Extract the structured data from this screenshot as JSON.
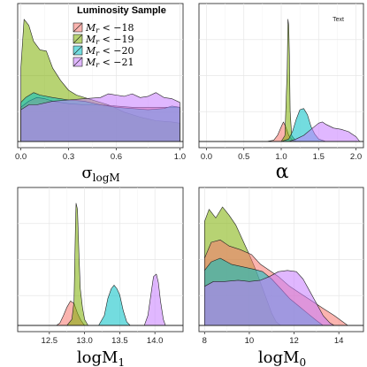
{
  "legend": {
    "title": "Luminosity Sample",
    "entries": [
      {
        "label_main": "M",
        "label_sub": "r",
        "label_rest": " < −18",
        "color": "#f8766d"
      },
      {
        "label_main": "M",
        "label_sub": "r",
        "label_rest": " < −19",
        "color": "#7cae00"
      },
      {
        "label_main": "M",
        "label_sub": "r",
        "label_rest": " < −20",
        "color": "#00bfc4"
      },
      {
        "label_main": "M",
        "label_sub": "r",
        "label_rest": " < −21",
        "color": "#c77cff"
      }
    ]
  },
  "fill_opacity": 0.55,
  "chart_data": [
    {
      "type": "area",
      "xlabel": "σ",
      "xlabel_sub": "logM",
      "xlim": [
        -0.02,
        1.02
      ],
      "ylim": [
        0,
        1.1
      ],
      "ticks": [
        0.0,
        0.3,
        0.6,
        1.0
      ],
      "tick_labels": [
        "0.0",
        "0.3",
        "0.6",
        "1.0"
      ],
      "series": [
        {
          "color": "#7cae00",
          "points": [
            [
              0,
              0.6
            ],
            [
              0.02,
              1
            ],
            [
              0.05,
              0.95
            ],
            [
              0.08,
              0.82
            ],
            [
              0.12,
              0.75
            ],
            [
              0.16,
              0.74
            ],
            [
              0.2,
              0.6
            ],
            [
              0.25,
              0.5
            ],
            [
              0.3,
              0.42
            ],
            [
              0.35,
              0.38
            ],
            [
              0.45,
              0.34
            ],
            [
              0.55,
              0.3
            ],
            [
              0.65,
              0.24
            ],
            [
              0.75,
              0.2
            ],
            [
              0.85,
              0.17
            ],
            [
              0.95,
              0.16
            ],
            [
              1,
              0.15
            ]
          ]
        },
        {
          "color": "#f8766d",
          "points": [
            [
              0,
              0.28
            ],
            [
              0.05,
              0.33
            ],
            [
              0.1,
              0.36
            ],
            [
              0.15,
              0.35
            ],
            [
              0.2,
              0.33
            ],
            [
              0.3,
              0.31
            ],
            [
              0.4,
              0.3
            ],
            [
              0.5,
              0.3
            ],
            [
              0.6,
              0.29
            ],
            [
              0.7,
              0.28
            ],
            [
              0.8,
              0.28
            ],
            [
              0.9,
              0.28
            ],
            [
              0.95,
              0.28
            ],
            [
              1,
              0.28
            ]
          ]
        },
        {
          "color": "#00bfc4",
          "points": [
            [
              0,
              0.32
            ],
            [
              0.03,
              0.36
            ],
            [
              0.08,
              0.4
            ],
            [
              0.12,
              0.38
            ],
            [
              0.2,
              0.36
            ],
            [
              0.3,
              0.34
            ],
            [
              0.4,
              0.33
            ],
            [
              0.5,
              0.3
            ],
            [
              0.6,
              0.28
            ],
            [
              0.7,
              0.27
            ],
            [
              0.8,
              0.26
            ],
            [
              0.9,
              0.27
            ],
            [
              0.95,
              0.29
            ],
            [
              1,
              0.28
            ]
          ]
        },
        {
          "color": "#c77cff",
          "points": [
            [
              0,
              0.26
            ],
            [
              0.05,
              0.3
            ],
            [
              0.1,
              0.3
            ],
            [
              0.2,
              0.33
            ],
            [
              0.3,
              0.34
            ],
            [
              0.4,
              0.35
            ],
            [
              0.5,
              0.36
            ],
            [
              0.55,
              0.39
            ],
            [
              0.6,
              0.38
            ],
            [
              0.65,
              0.37
            ],
            [
              0.7,
              0.39
            ],
            [
              0.75,
              0.36
            ],
            [
              0.8,
              0.37
            ],
            [
              0.85,
              0.4
            ],
            [
              0.9,
              0.36
            ],
            [
              0.95,
              0.35
            ],
            [
              1,
              0.32
            ]
          ]
        }
      ]
    },
    {
      "type": "area",
      "xlabel": "α",
      "xlabel_sub": "",
      "note": "Text",
      "xlim": [
        -0.1,
        2.1
      ],
      "ylim": [
        0,
        1.1
      ],
      "ticks": [
        0.0,
        0.5,
        1.0,
        1.5,
        2.0
      ],
      "tick_labels": [
        "0.0",
        "0.5",
        "1.0",
        "1.5",
        "2.0"
      ],
      "series": [
        {
          "color": "#f8766d",
          "points": [
            [
              0.7,
              0
            ],
            [
              0.8,
              0
            ],
            [
              0.9,
              0.01
            ],
            [
              0.95,
              0.05
            ],
            [
              1,
              0.12
            ],
            [
              1.03,
              0.16
            ],
            [
              1.06,
              0.12
            ],
            [
              1.1,
              0.05
            ],
            [
              1.15,
              0.01
            ],
            [
              1.2,
              0
            ]
          ]
        },
        {
          "color": "#7cae00",
          "points": [
            [
              0.8,
              0
            ],
            [
              1.0,
              0
            ],
            [
              1.05,
              0.05
            ],
            [
              1.08,
              0.6
            ],
            [
              1.09,
              1.0
            ],
            [
              1.1,
              0.95
            ],
            [
              1.11,
              0.7
            ],
            [
              1.12,
              0.25
            ],
            [
              1.14,
              0.05
            ],
            [
              1.2,
              0
            ]
          ]
        },
        {
          "color": "#00bfc4",
          "points": [
            [
              1.0,
              0
            ],
            [
              1.1,
              0.02
            ],
            [
              1.15,
              0.08
            ],
            [
              1.2,
              0.18
            ],
            [
              1.25,
              0.26
            ],
            [
              1.3,
              0.27
            ],
            [
              1.35,
              0.22
            ],
            [
              1.4,
              0.12
            ],
            [
              1.45,
              0.06
            ],
            [
              1.5,
              0.02
            ],
            [
              1.6,
              0
            ]
          ]
        },
        {
          "color": "#c77cff",
          "points": [
            [
              1.1,
              0
            ],
            [
              1.2,
              0.02
            ],
            [
              1.3,
              0.05
            ],
            [
              1.4,
              0.1
            ],
            [
              1.5,
              0.15
            ],
            [
              1.55,
              0.16
            ],
            [
              1.6,
              0.14
            ],
            [
              1.7,
              0.11
            ],
            [
              1.8,
              0.1
            ],
            [
              1.9,
              0.08
            ],
            [
              1.95,
              0.06
            ],
            [
              2.0,
              0.04
            ],
            [
              2.05,
              0
            ]
          ]
        }
      ]
    },
    {
      "type": "area",
      "xlabel": "logM",
      "xlabel_sub": "1",
      "xlim": [
        12.05,
        14.4
      ],
      "ylim": [
        0,
        1.1
      ],
      "ticks": [
        12.5,
        13.0,
        13.5,
        14.0
      ],
      "tick_labels": [
        "12.5",
        "13.0",
        "13.5",
        "14.0"
      ],
      "series": [
        {
          "color": "#f8766d",
          "points": [
            [
              12.6,
              0
            ],
            [
              12.65,
              0.02
            ],
            [
              12.7,
              0.08
            ],
            [
              12.75,
              0.15
            ],
            [
              12.8,
              0.2
            ],
            [
              12.85,
              0.18
            ],
            [
              12.9,
              0.1
            ],
            [
              12.95,
              0.04
            ],
            [
              13.0,
              0
            ]
          ]
        },
        {
          "color": "#7cae00",
          "points": [
            [
              12.75,
              0
            ],
            [
              12.82,
              0.05
            ],
            [
              12.85,
              0.2
            ],
            [
              12.87,
              0.8
            ],
            [
              12.88,
              1.0
            ],
            [
              12.9,
              0.95
            ],
            [
              12.92,
              0.6
            ],
            [
              12.94,
              0.3
            ],
            [
              12.97,
              0.15
            ],
            [
              13.0,
              0.05
            ],
            [
              13.05,
              0
            ]
          ]
        },
        {
          "color": "#00bfc4",
          "points": [
            [
              13.2,
              0
            ],
            [
              13.28,
              0.08
            ],
            [
              13.33,
              0.22
            ],
            [
              13.38,
              0.3
            ],
            [
              13.42,
              0.33
            ],
            [
              13.46,
              0.3
            ],
            [
              13.5,
              0.25
            ],
            [
              13.55,
              0.12
            ],
            [
              13.6,
              0.03
            ],
            [
              13.65,
              0
            ]
          ]
        },
        {
          "color": "#c77cff",
          "points": [
            [
              13.85,
              0
            ],
            [
              13.9,
              0.08
            ],
            [
              13.95,
              0.28
            ],
            [
              13.98,
              0.4
            ],
            [
              14.02,
              0.42
            ],
            [
              14.05,
              0.35
            ],
            [
              14.08,
              0.2
            ],
            [
              14.12,
              0.05
            ],
            [
              14.15,
              0
            ]
          ]
        }
      ]
    },
    {
      "type": "area",
      "xlabel": "logM",
      "xlabel_sub": "0",
      "xlim": [
        7.75,
        15.1
      ],
      "ylim": [
        0,
        1.1
      ],
      "ticks": [
        8,
        10,
        12,
        14
      ],
      "tick_labels": [
        "8",
        "10",
        "12",
        "14"
      ],
      "series": [
        {
          "color": "#7cae00",
          "points": [
            [
              8.0,
              0.85
            ],
            [
              8.2,
              0.95
            ],
            [
              8.5,
              0.88
            ],
            [
              8.8,
              0.97
            ],
            [
              9.1,
              0.9
            ],
            [
              9.4,
              0.82
            ],
            [
              9.7,
              0.7
            ],
            [
              10.0,
              0.58
            ],
            [
              10.3,
              0.45
            ],
            [
              10.6,
              0.3
            ],
            [
              10.8,
              0.2
            ],
            [
              11.0,
              0.1
            ],
            [
              11.2,
              0.03
            ],
            [
              11.4,
              0
            ]
          ]
        },
        {
          "color": "#f8766d",
          "points": [
            [
              8.0,
              0.55
            ],
            [
              8.3,
              0.68
            ],
            [
              8.7,
              0.7
            ],
            [
              9.1,
              0.65
            ],
            [
              9.6,
              0.62
            ],
            [
              10.1,
              0.58
            ],
            [
              10.5,
              0.5
            ],
            [
              10.9,
              0.45
            ],
            [
              11.3,
              0.4
            ],
            [
              11.8,
              0.32
            ],
            [
              12.3,
              0.26
            ],
            [
              12.8,
              0.2
            ],
            [
              13.3,
              0.14
            ],
            [
              13.8,
              0.08
            ],
            [
              14.1,
              0.04
            ],
            [
              14.4,
              0
            ]
          ]
        },
        {
          "color": "#00bfc4",
          "points": [
            [
              8.0,
              0.45
            ],
            [
              8.3,
              0.52
            ],
            [
              8.7,
              0.55
            ],
            [
              9.2,
              0.5
            ],
            [
              9.7,
              0.48
            ],
            [
              10.2,
              0.46
            ],
            [
              10.6,
              0.44
            ],
            [
              11.0,
              0.38
            ],
            [
              11.4,
              0.3
            ],
            [
              11.8,
              0.22
            ],
            [
              12.2,
              0.16
            ],
            [
              12.6,
              0.1
            ],
            [
              13.0,
              0.04
            ],
            [
              13.3,
              0
            ]
          ]
        },
        {
          "color": "#c77cff",
          "points": [
            [
              8.0,
              0.32
            ],
            [
              8.4,
              0.36
            ],
            [
              8.9,
              0.36
            ],
            [
              9.5,
              0.37
            ],
            [
              10.0,
              0.36
            ],
            [
              10.5,
              0.37
            ],
            [
              10.9,
              0.4
            ],
            [
              11.3,
              0.44
            ],
            [
              11.7,
              0.45
            ],
            [
              12.1,
              0.44
            ],
            [
              12.4,
              0.38
            ],
            [
              12.7,
              0.28
            ],
            [
              13.0,
              0.18
            ],
            [
              13.3,
              0.08
            ],
            [
              13.6,
              0.02
            ],
            [
              13.8,
              0
            ]
          ]
        }
      ]
    }
  ]
}
